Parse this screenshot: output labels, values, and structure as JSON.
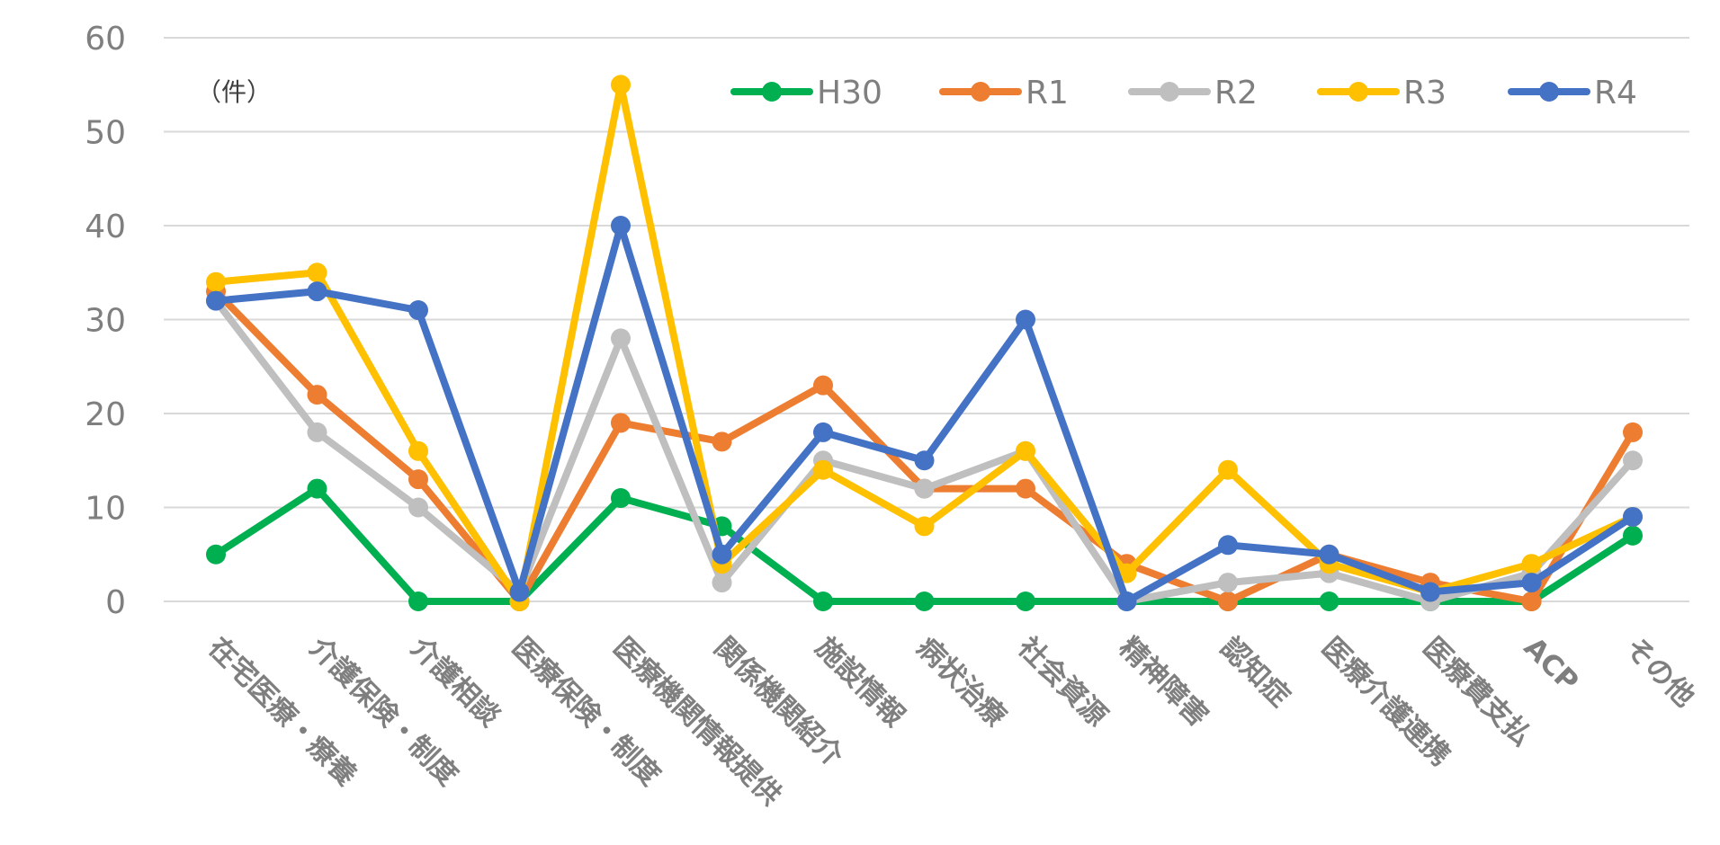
{
  "chart_data": {
    "type": "line",
    "unit_label": "（件）",
    "ylim": [
      0,
      60
    ],
    "yticks": [
      0,
      10,
      20,
      30,
      40,
      50,
      60
    ],
    "grid": true,
    "legend_position": "top-right",
    "categories": [
      "在宅医療・療養",
      "介護保険・制度",
      "介護相談",
      "医療保険・制度",
      "医療機関情報提供",
      "関係機関紹介",
      "施設情報",
      "病状治療",
      "社会資源",
      "精神障害",
      "認知症",
      "医療介護連携",
      "医療費支払",
      "ACP",
      "その他"
    ],
    "series": [
      {
        "name": "H30",
        "color": "#00b050",
        "values": [
          5,
          12,
          0,
          0,
          11,
          8,
          0,
          0,
          0,
          0,
          0,
          0,
          0,
          0,
          7
        ]
      },
      {
        "name": "R1",
        "color": "#ed7d31",
        "values": [
          33,
          22,
          13,
          0,
          19,
          17,
          23,
          12,
          12,
          4,
          0,
          5,
          2,
          0,
          18
        ]
      },
      {
        "name": "R2",
        "color": "#bfbfbf",
        "values": [
          32,
          18,
          10,
          1,
          28,
          2,
          15,
          12,
          16,
          0,
          2,
          3,
          0,
          3,
          15
        ]
      },
      {
        "name": "R3",
        "color": "#ffc000",
        "values": [
          34,
          35,
          16,
          0,
          55,
          4,
          14,
          8,
          16,
          3,
          14,
          4,
          1,
          4,
          9
        ]
      },
      {
        "name": "R4",
        "color": "#4472c4",
        "values": [
          32,
          33,
          31,
          1,
          40,
          5,
          18,
          15,
          30,
          0,
          6,
          5,
          1,
          2,
          9
        ]
      }
    ]
  }
}
